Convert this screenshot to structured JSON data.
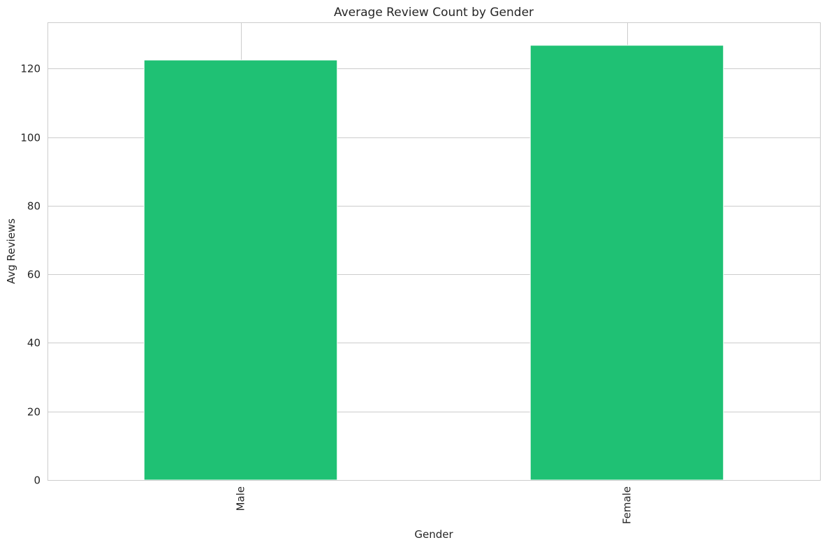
{
  "chart_data": {
    "type": "bar",
    "title": "Average Review Count by Gender",
    "xlabel": "Gender",
    "ylabel": "Avg Reviews",
    "categories": [
      "Male",
      "Female"
    ],
    "values": [
      122.5,
      126.8
    ],
    "ylim": [
      0,
      133.5
    ],
    "yticks": [
      0,
      20,
      40,
      60,
      80,
      100,
      120
    ],
    "grid": true,
    "legend": "none",
    "colors": {
      "bar": "#1fc174",
      "grid": "#cccccc",
      "text": "#262626"
    }
  }
}
